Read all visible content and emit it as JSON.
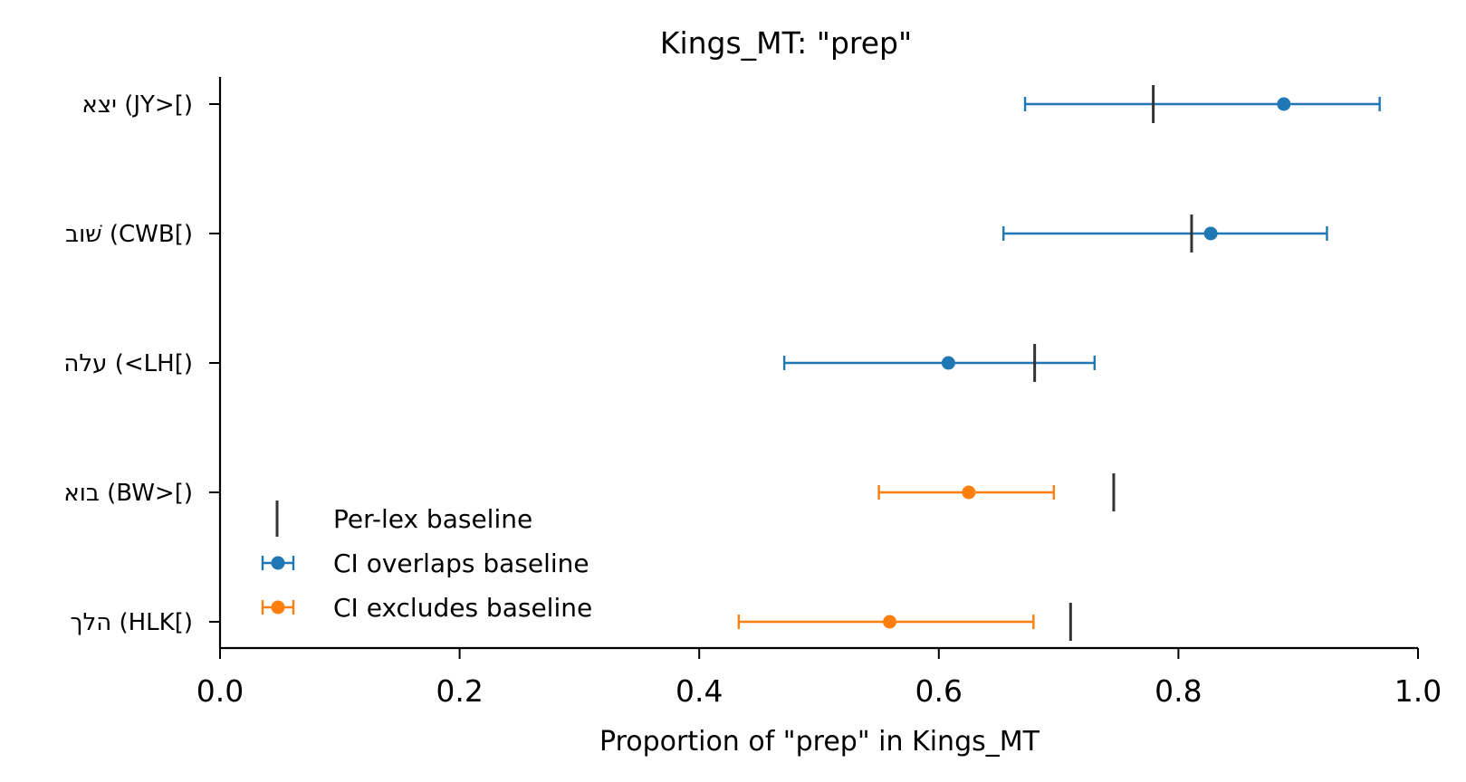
{
  "chart_data": {
    "type": "errorbar",
    "title": "Kings_MT: \"prep\"",
    "xlabel": "Proportion of \"prep\" in Kings_MT",
    "ylabel": "",
    "xlim": [
      0.0,
      1.0
    ],
    "xticks": [
      "0.0",
      "0.2",
      "0.4",
      "0.6",
      "0.8",
      "1.0"
    ],
    "xtick_values": [
      0.0,
      0.2,
      0.4,
      0.6,
      0.8,
      1.0
    ],
    "grid": false,
    "legend_position": "lower-left",
    "categories": [
      "יצא (JY>[)",
      "שׁוב (CWB[)",
      "עלה (<LH[)",
      "בוא (BW>[)",
      "הלך (HLK[)"
    ],
    "rows": [
      {
        "label": "יצא (JY>[)",
        "estimate": 0.888,
        "ci_low": 0.672,
        "ci_high": 0.968,
        "baseline": 0.779,
        "status": "overlaps"
      },
      {
        "label": "שׁוב (CWB[)",
        "estimate": 0.827,
        "ci_low": 0.654,
        "ci_high": 0.924,
        "baseline": 0.811,
        "status": "overlaps"
      },
      {
        "label": "עלה (<LH[)",
        "estimate": 0.608,
        "ci_low": 0.471,
        "ci_high": 0.73,
        "baseline": 0.68,
        "status": "overlaps"
      },
      {
        "label": "בוא (BW>[)",
        "estimate": 0.625,
        "ci_low": 0.55,
        "ci_high": 0.696,
        "baseline": 0.746,
        "status": "excludes"
      },
      {
        "label": "הלך (HLK[)",
        "estimate": 0.559,
        "ci_low": 0.433,
        "ci_high": 0.679,
        "baseline": 0.71,
        "status": "excludes"
      }
    ],
    "legend": [
      {
        "key": "baseline",
        "label": "Per-lex baseline"
      },
      {
        "key": "overlaps",
        "label": "CI overlaps baseline"
      },
      {
        "key": "excludes",
        "label": "CI excludes baseline"
      }
    ],
    "colors": {
      "overlaps": "#1f77b4",
      "excludes": "#ff7f0e",
      "baseline": "#333333",
      "axis": "#000000"
    }
  }
}
